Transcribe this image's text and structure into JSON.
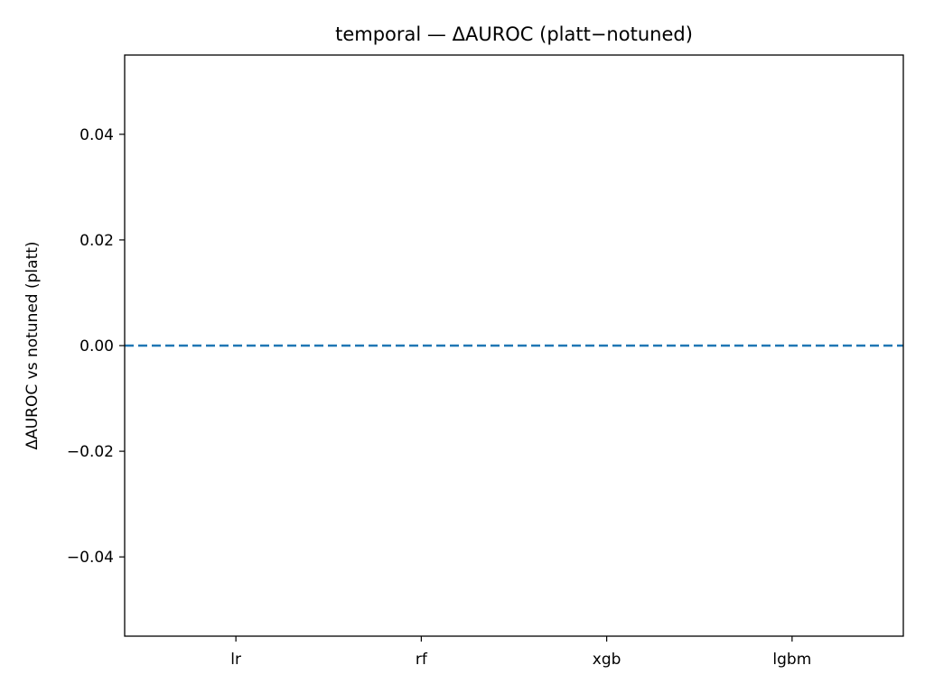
{
  "chart_data": {
    "type": "bar",
    "title": "temporal — ΔAUROC (platt−notuned)",
    "xlabel": "",
    "ylabel": "ΔAUROC vs notuned (platt)",
    "categories": [
      "lr",
      "rf",
      "xgb",
      "lgbm"
    ],
    "values": [
      0,
      0,
      0,
      0
    ],
    "ylim": [
      -0.055,
      0.055
    ],
    "yticks": [
      -0.04,
      -0.02,
      0.0,
      0.02,
      0.04
    ],
    "ytick_labels": [
      "−0.04",
      "−0.02",
      "0.00",
      "0.02",
      "0.04"
    ],
    "reference_line": {
      "y": 0,
      "style": "dashed",
      "color": "#1f77b4"
    },
    "grid": false,
    "legend": "none"
  }
}
